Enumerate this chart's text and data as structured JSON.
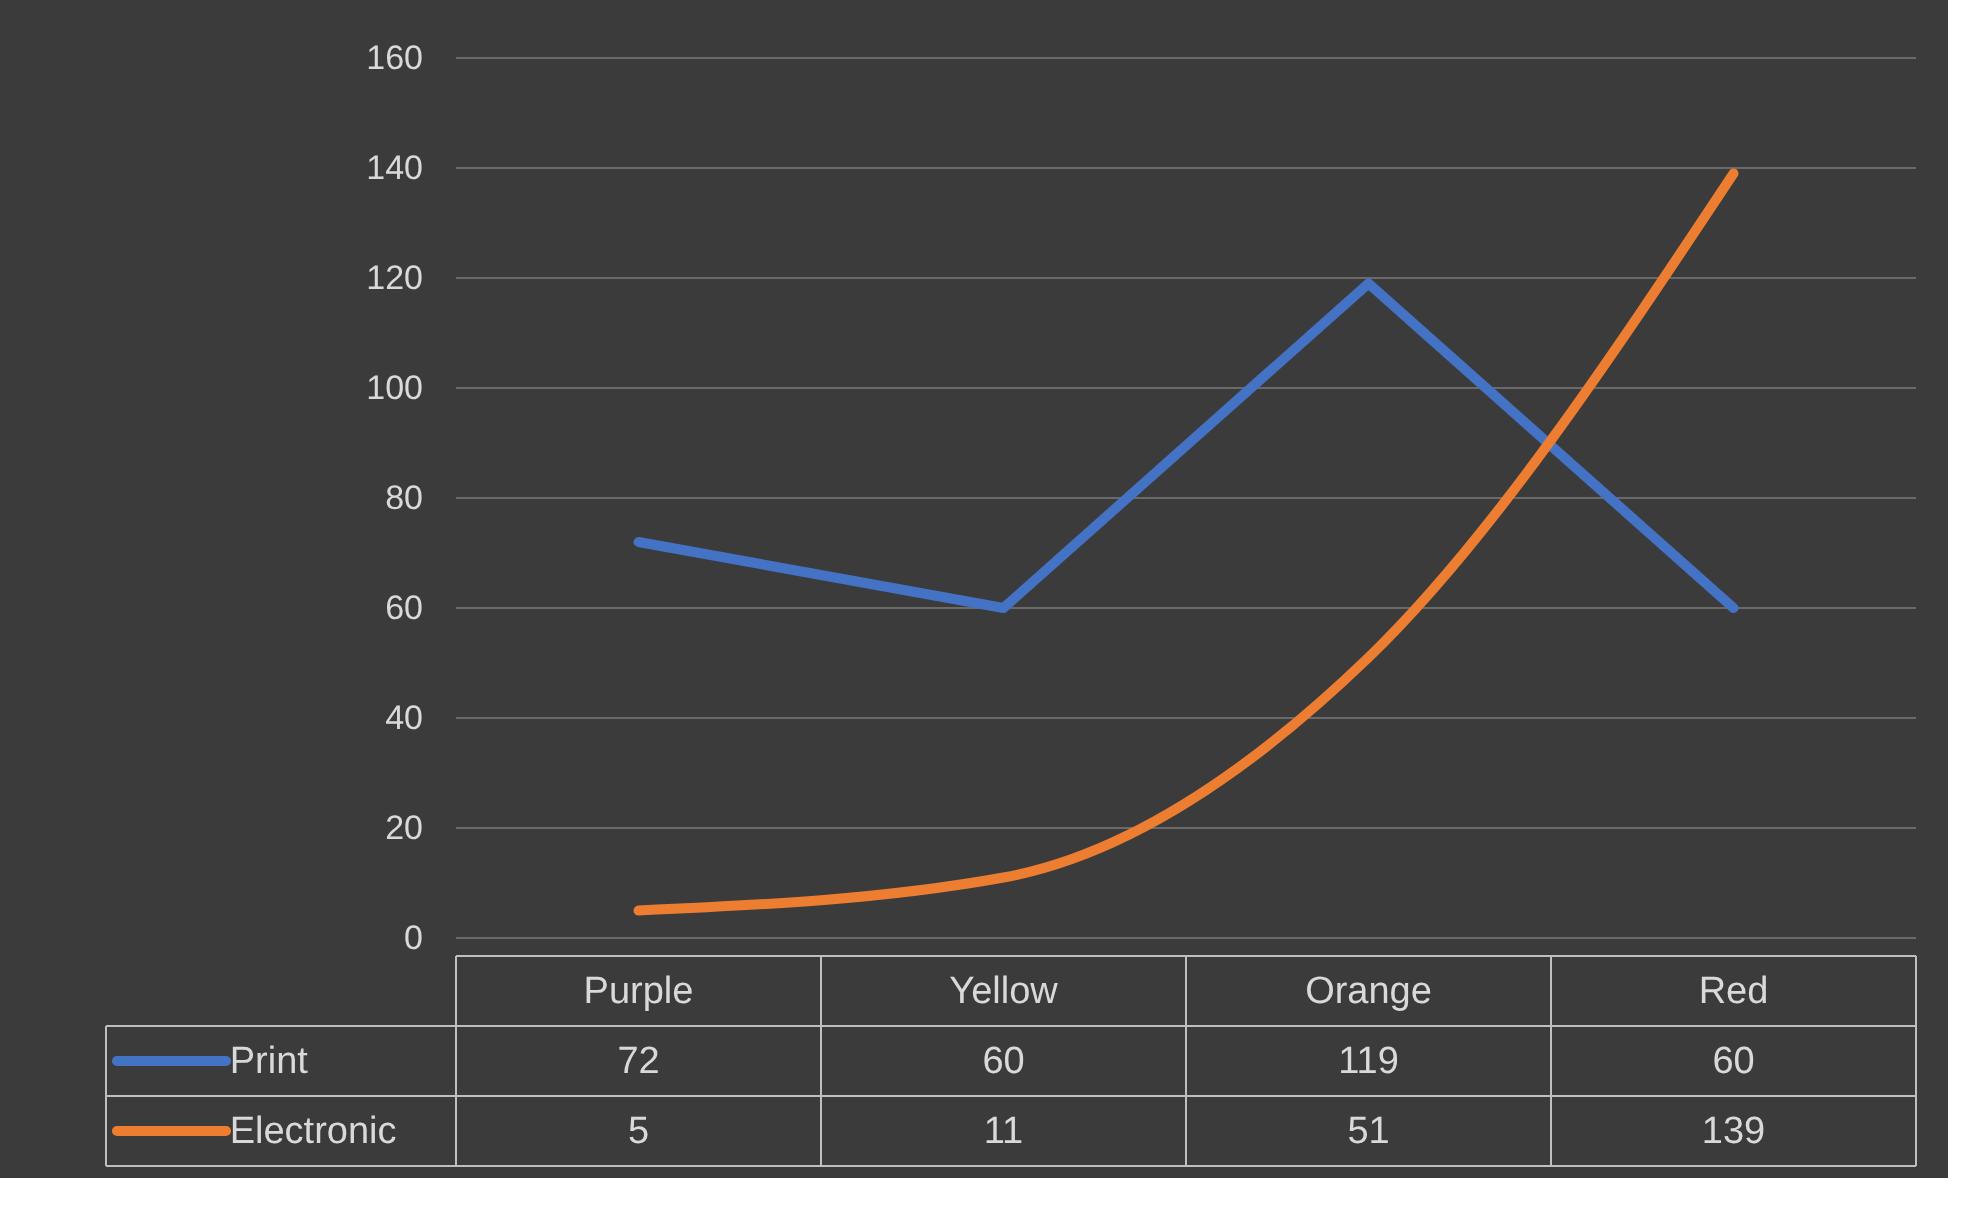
{
  "chart_data": {
    "type": "line",
    "categories": [
      "Purple",
      "Yellow",
      "Orange",
      "Red"
    ],
    "series": [
      {
        "name": "Print",
        "color": "#4472c4",
        "values": [
          72,
          60,
          119,
          60
        ]
      },
      {
        "name": "Electronic",
        "color": "#ed7d31",
        "values": [
          5,
          11,
          51,
          139
        ]
      }
    ],
    "ylim": [
      0,
      160
    ],
    "yticks": [
      0,
      20,
      40,
      60,
      80,
      100,
      120,
      140,
      160
    ],
    "grid": "y",
    "legend": "bottom",
    "data_labels": true,
    "marker": "none",
    "line_style": "solid"
  }
}
